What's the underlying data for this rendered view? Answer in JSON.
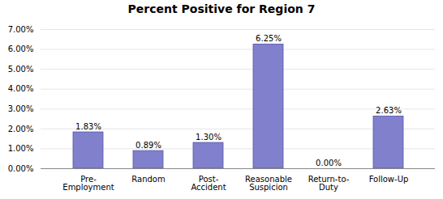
{
  "chart_data": {
    "type": "bar",
    "title": "Percent Positive for Region 7",
    "categories": [
      "Pre-\nEmployment",
      "Random",
      "Post-\nAccident",
      "Reasonable\nSuspicion",
      "Return-to-\nDuty",
      "Follow-Up"
    ],
    "values": [
      1.83,
      0.89,
      1.3,
      6.25,
      0.0,
      2.63
    ],
    "value_labels": [
      "1.83%",
      "0.89%",
      "1.30%",
      "6.25%",
      "0.00%",
      "2.63%"
    ],
    "color": "#8080CC",
    "ylim": [
      0,
      7.0
    ],
    "yticks": [
      {
        "value": 0.0,
        "label": "0.00%"
      },
      {
        "value": 1.0,
        "label": "1.00%"
      },
      {
        "value": 2.0,
        "label": "2.00%"
      },
      {
        "value": 3.0,
        "label": "3.00%"
      },
      {
        "value": 4.0,
        "label": "4.00%"
      },
      {
        "value": 5.0,
        "label": "5.00%"
      },
      {
        "value": 6.0,
        "label": "6.00%"
      },
      {
        "value": 7.0,
        "label": "7.00%"
      }
    ],
    "grid": true,
    "data_labels": true
  }
}
